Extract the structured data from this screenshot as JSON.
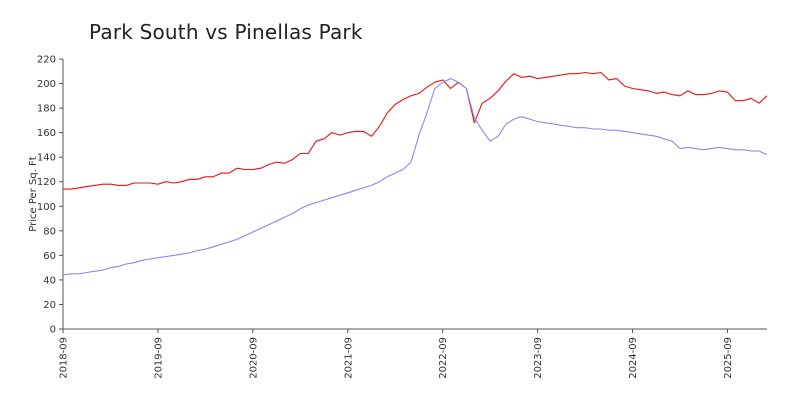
{
  "chart_data": {
    "type": "line",
    "title": "Park South vs Pinellas Park",
    "xlabel": "",
    "ylabel": "Price Per Sq. Ft",
    "ylim": [
      0,
      220
    ],
    "yticks": [
      0,
      20,
      40,
      60,
      80,
      100,
      120,
      140,
      160,
      180,
      200,
      220
    ],
    "x_start": "2018-09",
    "xticks": [
      "2018-09",
      "2019-09",
      "2020-09",
      "2021-09",
      "2022-09",
      "2023-09",
      "2024-09",
      "2025-09"
    ],
    "grid": false,
    "series": [
      {
        "color": "#ee1111",
        "values": [
          114,
          114,
          115,
          116,
          117,
          118,
          118,
          117,
          117,
          119,
          119,
          119,
          118,
          120,
          119,
          120,
          122,
          122,
          124,
          124,
          127,
          127,
          131,
          130,
          130,
          131,
          134,
          136,
          135,
          138,
          143,
          143,
          153,
          155,
          160,
          158,
          160,
          161,
          161,
          157,
          165,
          176,
          183,
          187,
          190,
          192,
          197,
          201,
          203,
          196,
          201,
          196,
          168,
          184,
          188,
          194,
          202,
          208,
          205,
          206,
          204,
          205,
          206,
          207,
          208,
          208,
          209,
          208,
          209,
          203,
          204,
          198,
          196,
          195,
          194,
          192,
          193,
          191,
          190,
          194,
          191,
          191,
          192,
          194,
          193,
          186,
          186,
          188,
          184,
          190
        ]
      },
      {
        "color": "#8888ee",
        "values": [
          44,
          45,
          45,
          46,
          47,
          48,
          50,
          51,
          53,
          54,
          56,
          57,
          58,
          59,
          60,
          61,
          62,
          64,
          65,
          67,
          69,
          71,
          73,
          76,
          79,
          82,
          85,
          88,
          91,
          94,
          98,
          101,
          103,
          105,
          107,
          109,
          111,
          113,
          115,
          117,
          120,
          124,
          127,
          130,
          136,
          158,
          176,
          196,
          201,
          204,
          201,
          196,
          172,
          162,
          153,
          157,
          167,
          171,
          173,
          171,
          169,
          168,
          167,
          166,
          165,
          164,
          164,
          163,
          163,
          162,
          162,
          161,
          160,
          159,
          158,
          157,
          155,
          153,
          147,
          148,
          147,
          146,
          147,
          148,
          147,
          146,
          146,
          145,
          145,
          142
        ]
      }
    ]
  }
}
